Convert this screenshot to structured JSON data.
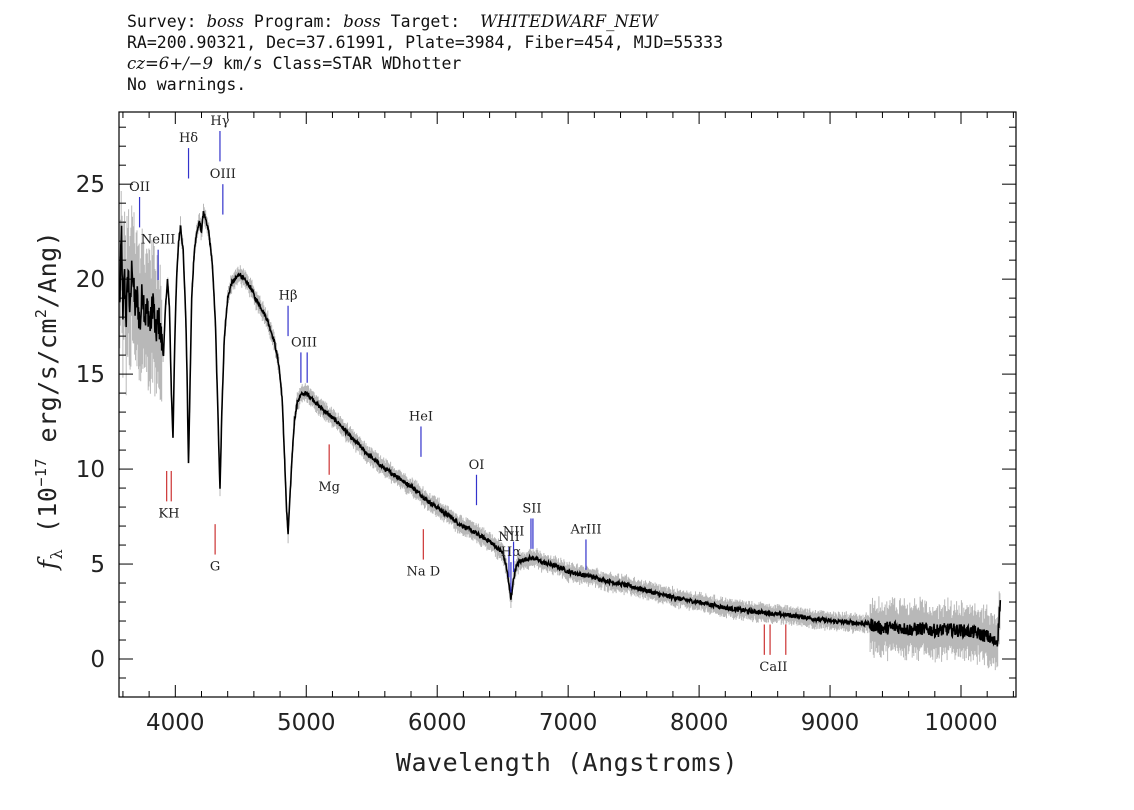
{
  "header": {
    "line1_prefix": "Survey: ",
    "survey": "boss",
    "program_label": " Program: ",
    "program": "boss",
    "target_label": " Target:  ",
    "target": "WHITEDWARF_NEW",
    "line2": "RA=200.90321, Dec=37.61991, Plate=3984, Fiber=454, MJD=55333",
    "cz_symbol": "cz",
    "cz_value": "=6+/−9",
    "line3_suffix": " km/s Class=STAR WDhotter",
    "line4": "No warnings."
  },
  "chart_data": {
    "type": "line",
    "xlabel": "Wavelength (Angstroms)",
    "ylabel": "f_λ (10^-17 erg/s/cm^2/Ang)",
    "xlim": [
      3570,
      10420
    ],
    "ylim": [
      -2,
      28.8
    ],
    "xticks": [
      4000,
      5000,
      6000,
      7000,
      8000,
      9000,
      10000
    ],
    "yticks": [
      0,
      5,
      10,
      15,
      20,
      25
    ],
    "grid": false,
    "series": [
      {
        "color": "#000000",
        "noise_color": "#b8b8b8",
        "points": [
          [
            3575,
            18.5
          ],
          [
            3590,
            22.5
          ],
          [
            3600,
            17.5
          ],
          [
            3610,
            20.5
          ],
          [
            3625,
            18.0
          ],
          [
            3640,
            20.5
          ],
          [
            3655,
            18.0
          ],
          [
            3670,
            21.0
          ],
          [
            3690,
            18.5
          ],
          [
            3710,
            19.0
          ],
          [
            3730,
            17.5
          ],
          [
            3750,
            19.5
          ],
          [
            3770,
            18.0
          ],
          [
            3790,
            18.5
          ],
          [
            3810,
            17.5
          ],
          [
            3830,
            19.0
          ],
          [
            3850,
            17.0
          ],
          [
            3870,
            18.0
          ],
          [
            3890,
            17.0
          ],
          [
            3910,
            16.0
          ],
          [
            3925,
            18.5
          ],
          [
            3940,
            20.0
          ],
          [
            3955,
            18.5
          ],
          [
            3970,
            14.0
          ],
          [
            3982,
            11.6
          ],
          [
            3995,
            16.5
          ],
          [
            4010,
            20.0
          ],
          [
            4025,
            22.0
          ],
          [
            4040,
            22.8
          ],
          [
            4060,
            21.5
          ],
          [
            4080,
            18.0
          ],
          [
            4092,
            14.0
          ],
          [
            4101,
            10.2
          ],
          [
            4110,
            13.5
          ],
          [
            4125,
            19.0
          ],
          [
            4145,
            21.5
          ],
          [
            4165,
            22.5
          ],
          [
            4185,
            23.0
          ],
          [
            4200,
            22.5
          ],
          [
            4215,
            23.6
          ],
          [
            4235,
            23.0
          ],
          [
            4255,
            22.5
          ],
          [
            4280,
            21.0
          ],
          [
            4305,
            18.0
          ],
          [
            4325,
            13.0
          ],
          [
            4341,
            8.9
          ],
          [
            4355,
            13.0
          ],
          [
            4375,
            17.0
          ],
          [
            4400,
            19.0
          ],
          [
            4430,
            19.8
          ],
          [
            4460,
            20.0
          ],
          [
            4490,
            20.3
          ],
          [
            4520,
            20.0
          ],
          [
            4550,
            19.8
          ],
          [
            4580,
            19.5
          ],
          [
            4610,
            19.0
          ],
          [
            4640,
            18.7
          ],
          [
            4670,
            18.3
          ],
          [
            4700,
            17.9
          ],
          [
            4730,
            17.3
          ],
          [
            4760,
            16.6
          ],
          [
            4790,
            15.5
          ],
          [
            4815,
            13.8
          ],
          [
            4835,
            10.5
          ],
          [
            4850,
            7.8
          ],
          [
            4861,
            6.6
          ],
          [
            4872,
            8.0
          ],
          [
            4890,
            10.5
          ],
          [
            4910,
            12.6
          ],
          [
            4935,
            13.6
          ],
          [
            4960,
            13.9
          ],
          [
            4990,
            14.0
          ],
          [
            5020,
            13.9
          ],
          [
            5060,
            13.6
          ],
          [
            5100,
            13.3
          ],
          [
            5150,
            13.0
          ],
          [
            5200,
            12.7
          ],
          [
            5250,
            12.4
          ],
          [
            5300,
            12.0
          ],
          [
            5350,
            11.6
          ],
          [
            5400,
            11.3
          ],
          [
            5450,
            10.9
          ],
          [
            5500,
            10.6
          ],
          [
            5550,
            10.3
          ],
          [
            5600,
            10.0
          ],
          [
            5650,
            9.8
          ],
          [
            5700,
            9.6
          ],
          [
            5750,
            9.3
          ],
          [
            5800,
            9.1
          ],
          [
            5850,
            8.8
          ],
          [
            5900,
            8.5
          ],
          [
            5950,
            8.2
          ],
          [
            6000,
            8.0
          ],
          [
            6050,
            7.7
          ],
          [
            6100,
            7.5
          ],
          [
            6150,
            7.2
          ],
          [
            6200,
            7.0
          ],
          [
            6250,
            6.8
          ],
          [
            6300,
            6.6
          ],
          [
            6350,
            6.4
          ],
          [
            6400,
            6.2
          ],
          [
            6450,
            5.9
          ],
          [
            6500,
            5.6
          ],
          [
            6530,
            4.8
          ],
          [
            6550,
            3.8
          ],
          [
            6563,
            3.1
          ],
          [
            6578,
            4.0
          ],
          [
            6600,
            4.8
          ],
          [
            6625,
            5.1
          ],
          [
            6650,
            5.2
          ],
          [
            6700,
            5.3
          ],
          [
            6750,
            5.3
          ],
          [
            6800,
            5.1
          ],
          [
            6850,
            5.0
          ],
          [
            6900,
            4.9
          ],
          [
            6950,
            4.8
          ],
          [
            7000,
            4.6
          ],
          [
            7100,
            4.45
          ],
          [
            7200,
            4.3
          ],
          [
            7300,
            4.1
          ],
          [
            7400,
            3.95
          ],
          [
            7500,
            3.8
          ],
          [
            7600,
            3.6
          ],
          [
            7700,
            3.4
          ],
          [
            7800,
            3.25
          ],
          [
            7900,
            3.1
          ],
          [
            8000,
            3.0
          ],
          [
            8100,
            2.85
          ],
          [
            8200,
            2.7
          ],
          [
            8300,
            2.6
          ],
          [
            8400,
            2.5
          ],
          [
            8500,
            2.45
          ],
          [
            8600,
            2.35
          ],
          [
            8700,
            2.3
          ],
          [
            8800,
            2.2
          ],
          [
            8900,
            2.1
          ],
          [
            9000,
            2.0
          ],
          [
            9100,
            1.95
          ],
          [
            9200,
            1.9
          ],
          [
            9300,
            1.85
          ],
          [
            9400,
            1.6
          ],
          [
            9500,
            1.7
          ],
          [
            9600,
            1.55
          ],
          [
            9700,
            1.6
          ],
          [
            9800,
            1.5
          ],
          [
            9900,
            1.55
          ],
          [
            10000,
            1.5
          ],
          [
            10100,
            1.4
          ],
          [
            10200,
            1.2
          ],
          [
            10250,
            0.9
          ],
          [
            10280,
            1.0
          ],
          [
            10300,
            3.1
          ]
        ]
      }
    ],
    "emission_lines": [
      {
        "label": "OII",
        "wavelengths": [
          3727
        ]
      },
      {
        "label": "NeIII",
        "wavelengths": [
          3869
        ]
      },
      {
        "label": "Hδ",
        "wavelengths": [
          4101
        ]
      },
      {
        "label": "Hγ",
        "wavelengths": [
          4341
        ]
      },
      {
        "label": "OIII",
        "wavelengths": [
          4363
        ]
      },
      {
        "label": "Hβ",
        "wavelengths": [
          4861
        ]
      },
      {
        "label": "OIII",
        "wavelengths": [
          4959,
          5007
        ]
      },
      {
        "label": "HeI",
        "wavelengths": [
          5876
        ]
      },
      {
        "label": "OI",
        "wavelengths": [
          6300
        ]
      },
      {
        "label": "NII",
        "wavelengths": [
          6548
        ]
      },
      {
        "label": "Hα",
        "wavelengths": [
          6563
        ]
      },
      {
        "label": "NII",
        "wavelengths": [
          6583
        ]
      },
      {
        "label": "SII",
        "wavelengths": [
          6716,
          6731
        ]
      },
      {
        "label": "ArIII",
        "wavelengths": [
          7136
        ]
      }
    ],
    "absorption_lines": [
      {
        "label": "KH",
        "wavelengths": [
          3934,
          3969
        ]
      },
      {
        "label": "G",
        "wavelengths": [
          4304
        ]
      },
      {
        "label": "Mg",
        "wavelengths": [
          5175
        ]
      },
      {
        "label": "Na D",
        "wavelengths": [
          5894
        ]
      },
      {
        "label": "CaII",
        "wavelengths": [
          8498,
          8542,
          8662
        ]
      }
    ],
    "colors": {
      "emission": "#3333cc",
      "absorption": "#cc3333",
      "spectrum": "#000000",
      "noise": "#b8b8b8"
    }
  }
}
